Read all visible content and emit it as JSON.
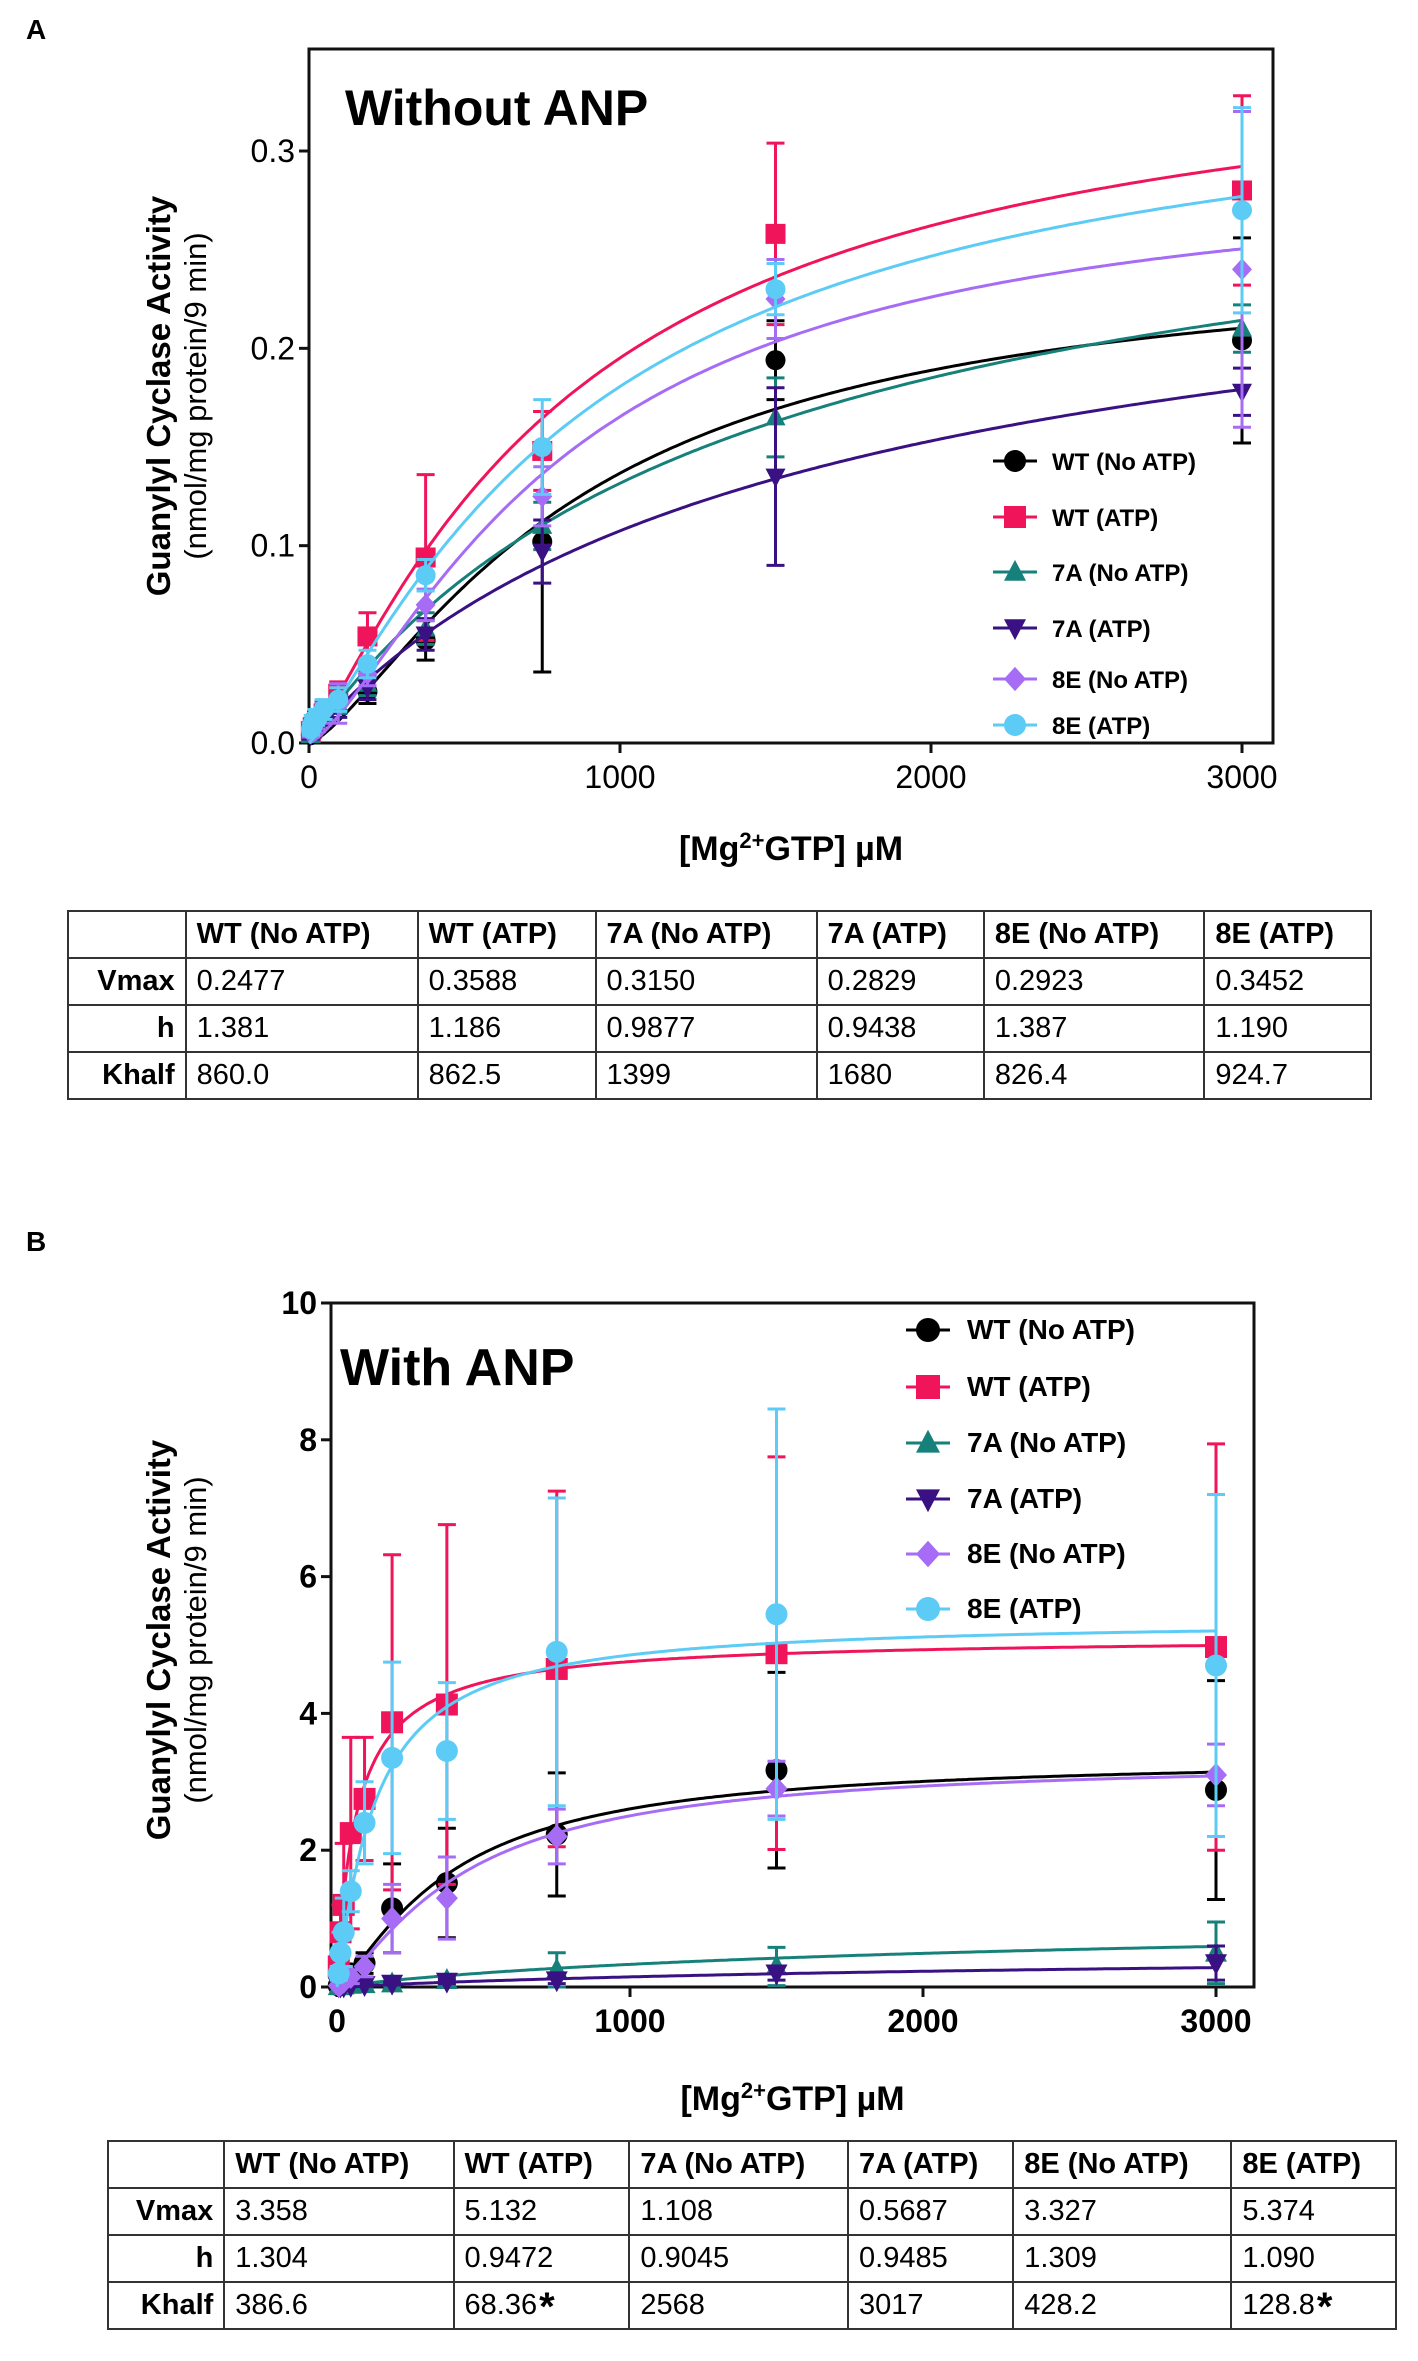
{
  "panels": [
    {
      "label": "A",
      "chart_data": {
        "type": "line",
        "title": "Without ANP",
        "xlabel": "[Mg2+GTP] µM",
        "xlabel_parts": [
          "[Mg",
          "2+",
          "GTP] µM"
        ],
        "ylabel": "Guanylyl Cyclase Activity",
        "ylabel_units": "(nmol/mg protein/9 min)",
        "xlim": [
          0,
          3000
        ],
        "ylim": [
          0,
          0.34
        ],
        "xticks": [
          0,
          1000,
          2000,
          3000
        ],
        "xtick_labels": [
          "0",
          "1000",
          "2000",
          "3000"
        ],
        "yticks": [
          0,
          0.1,
          0.2,
          0.3
        ],
        "ytick_labels": [
          "0.0",
          "0.1",
          "0.2",
          "0.3"
        ],
        "grid": false,
        "legend_position": "bottom-right",
        "x": [
          6,
          12,
          23,
          47,
          94,
          188,
          375,
          750,
          1500,
          3000
        ],
        "series": [
          {
            "name": "WT (No ATP)",
            "color": "#000000",
            "marker": "circle",
            "vmax": 0.2477,
            "h": 1.381,
            "khalf": 860.0,
            "values": [
              0.004,
              0.008,
              0.012,
              0.016,
              0.022,
              0.026,
              0.052,
              0.102,
              0.194,
              0.204
            ],
            "errors": [
              0.002,
              0.003,
              0.004,
              0.005,
              0.007,
              0.006,
              0.01,
              0.066,
              0.02,
              0.052
            ]
          },
          {
            "name": "WT (ATP)",
            "color": "#f0145a",
            "marker": "square",
            "vmax": 0.3588,
            "h": 1.186,
            "khalf": 862.5,
            "values": [
              0.006,
              0.008,
              0.01,
              0.015,
              0.025,
              0.054,
              0.094,
              0.148,
              0.258,
              0.28
            ],
            "errors": [
              0.003,
              0.004,
              0.004,
              0.006,
              0.006,
              0.012,
              0.042,
              0.02,
              0.046,
              0.048
            ]
          },
          {
            "name": "7A (No ATP)",
            "color": "#16807a",
            "marker": "triangle-up",
            "vmax": 0.315,
            "h": 0.9877,
            "khalf": 1399,
            "values": [
              0.004,
              0.007,
              0.01,
              0.015,
              0.02,
              0.03,
              0.058,
              0.11,
              0.165,
              0.21
            ],
            "errors": [
              0.002,
              0.003,
              0.003,
              0.004,
              0.005,
              0.006,
              0.008,
              0.012,
              0.02,
              0.012
            ]
          },
          {
            "name": "7A (ATP)",
            "color": "#3a1182",
            "marker": "triangle-down",
            "vmax": 0.2829,
            "h": 0.9438,
            "khalf": 1680,
            "values": [
              0.004,
              0.006,
              0.009,
              0.013,
              0.018,
              0.028,
              0.055,
              0.097,
              0.135,
              0.178
            ],
            "errors": [
              0.002,
              0.003,
              0.003,
              0.004,
              0.005,
              0.006,
              0.008,
              0.016,
              0.045,
              0.012
            ]
          },
          {
            "name": "8E (No ATP)",
            "color": "#a66cf5",
            "marker": "diamond",
            "vmax": 0.2923,
            "h": 1.387,
            "khalf": 826.4,
            "values": [
              0.005,
              0.008,
              0.011,
              0.015,
              0.02,
              0.035,
              0.07,
              0.125,
              0.225,
              0.24
            ],
            "errors": [
              0.002,
              0.003,
              0.004,
              0.005,
              0.01,
              0.006,
              0.008,
              0.015,
              0.02,
              0.08
            ]
          },
          {
            "name": "8E (ATP)",
            "color": "#5ccbf5",
            "marker": "circle",
            "vmax": 0.3452,
            "h": 1.19,
            "khalf": 924.7,
            "values": [
              0.007,
              0.01,
              0.013,
              0.017,
              0.022,
              0.04,
              0.085,
              0.15,
              0.23,
              0.27
            ],
            "errors": [
              0.003,
              0.004,
              0.004,
              0.005,
              0.006,
              0.007,
              0.008,
              0.024,
              0.013,
              0.052
            ]
          }
        ]
      },
      "table": {
        "columns": [
          "WT (No ATP)",
          "WT (ATP)",
          "7A (No ATP)",
          "7A (ATP)",
          "8E (No ATP)",
          "8E (ATP)"
        ],
        "rows": [
          {
            "label": "Vmax",
            "cells": [
              "0.2477",
              "0.3588",
              "0.3150",
              "0.2829",
              "0.2923",
              "0.3452"
            ]
          },
          {
            "label": "h",
            "cells": [
              "1.381",
              "1.186",
              "0.9877",
              "0.9438",
              "1.387",
              "1.190"
            ]
          },
          {
            "label": "Khalf",
            "cells": [
              "860.0",
              "862.5",
              "1399",
              "1680",
              "826.4",
              "924.7"
            ]
          }
        ]
      }
    },
    {
      "label": "B",
      "chart_data": {
        "type": "line",
        "title": "With ANP",
        "xlabel": "[Mg2+GTP] µM",
        "xlabel_parts": [
          "[Mg",
          "2+",
          "GTP] µM"
        ],
        "ylabel": "Guanylyl Cyclase Activity",
        "ylabel_units": "(nmol/mg protein/9 min)",
        "xlim": [
          0,
          3000
        ],
        "ylim": [
          0,
          10
        ],
        "xticks": [
          0,
          1000,
          2000,
          3000
        ],
        "xtick_labels": [
          "0",
          "1000",
          "2000",
          "3000"
        ],
        "yticks": [
          0,
          2,
          4,
          6,
          8,
          10
        ],
        "ytick_labels": [
          "0",
          "2",
          "4",
          "6",
          "8",
          "10"
        ],
        "grid": false,
        "legend_position": "top-right",
        "x": [
          6,
          12,
          23,
          47,
          94,
          188,
          375,
          750,
          1500,
          3000
        ],
        "series": [
          {
            "name": "WT (No ATP)",
            "color": "#000000",
            "marker": "circle",
            "vmax": 3.358,
            "h": 1.304,
            "khalf": 386.6,
            "values": [
              0.02,
              0.05,
              0.1,
              0.2,
              0.35,
              1.15,
              1.52,
              2.23,
              3.17,
              2.88
            ],
            "errors": [
              0.02,
              0.03,
              0.05,
              0.1,
              0.15,
              0.65,
              0.8,
              0.9,
              1.43,
              1.6
            ]
          },
          {
            "name": "WT (ATP)",
            "color": "#f0145a",
            "marker": "square",
            "vmax": 5.132,
            "h": 0.9472,
            "khalf": 68.36,
            "values": [
              0.3,
              0.8,
              1.2,
              2.25,
              2.75,
              3.87,
              4.13,
              4.65,
              4.88,
              4.97
            ],
            "errors": [
              0.2,
              0.4,
              0.9,
              1.4,
              0.9,
              2.45,
              2.63,
              2.6,
              2.87,
              2.97
            ]
          },
          {
            "name": "7A (No ATP)",
            "color": "#16807a",
            "marker": "triangle-up",
            "vmax": 1.108,
            "h": 0.9045,
            "khalf": 2568,
            "values": [
              0.01,
              0.01,
              0.02,
              0.03,
              0.04,
              0.05,
              0.1,
              0.25,
              0.3,
              0.5
            ],
            "errors": [
              0.01,
              0.01,
              0.01,
              0.02,
              0.02,
              0.03,
              0.05,
              0.25,
              0.28,
              0.45
            ]
          },
          {
            "name": "7A (ATP)",
            "color": "#3a1182",
            "marker": "triangle-down",
            "vmax": 0.5687,
            "h": 0.9485,
            "khalf": 3017,
            "values": [
              0.01,
              0.01,
              0.01,
              0.02,
              0.03,
              0.05,
              0.08,
              0.1,
              0.2,
              0.35
            ],
            "errors": [
              0.01,
              0.01,
              0.01,
              0.01,
              0.02,
              0.02,
              0.03,
              0.05,
              0.1,
              0.25
            ]
          },
          {
            "name": "8E (No ATP)",
            "color": "#a66cf5",
            "marker": "diamond",
            "vmax": 3.327,
            "h": 1.309,
            "khalf": 428.2,
            "values": [
              0.02,
              0.04,
              0.08,
              0.15,
              0.3,
              1.0,
              1.3,
              2.2,
              2.9,
              3.1
            ],
            "errors": [
              0.02,
              0.03,
              0.05,
              0.1,
              0.15,
              0.5,
              0.6,
              0.4,
              0.4,
              0.45
            ]
          },
          {
            "name": "8E (ATP)",
            "color": "#5ccbf5",
            "marker": "circle",
            "vmax": 5.374,
            "h": 1.09,
            "khalf": 128.8,
            "values": [
              0.2,
              0.5,
              0.8,
              1.4,
              2.4,
              3.35,
              3.45,
              4.9,
              5.45,
              4.7
            ],
            "errors": [
              0.1,
              0.3,
              0.5,
              0.3,
              0.6,
              1.4,
              1.0,
              2.25,
              3.0,
              2.5
            ]
          }
        ]
      },
      "table": {
        "columns": [
          "WT (No ATP)",
          "WT (ATP)",
          "7A (No ATP)",
          "7A (ATP)",
          "8E (No ATP)",
          "8E (ATP)"
        ],
        "rows": [
          {
            "label": "Vmax",
            "cells": [
              "3.358",
              "5.132",
              "1.108",
              "0.5687",
              "3.327",
              "5.374"
            ]
          },
          {
            "label": "h",
            "cells": [
              "1.304",
              "0.9472",
              "0.9045",
              "0.9485",
              "1.309",
              "1.090"
            ]
          },
          {
            "label": "Khalf",
            "cells": [
              "386.6",
              "68.36",
              "2568",
              "3017",
              "428.2",
              "128.8"
            ]
          }
        ],
        "significance_marks": {
          "2": {
            "1": "*",
            "5": "*"
          }
        }
      }
    }
  ]
}
